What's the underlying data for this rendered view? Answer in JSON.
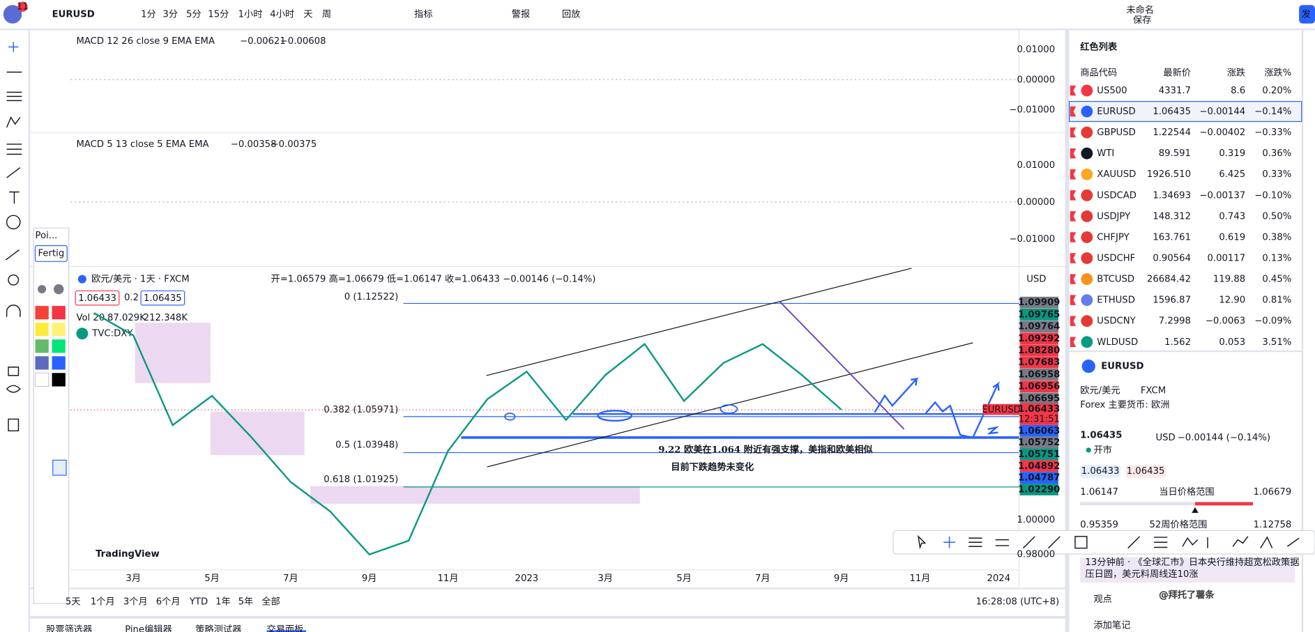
{
  "toolbar": {
    "symbol": "EURUSD",
    "intervals": [
      "1分",
      "3分",
      "5分",
      "15分",
      "1小时",
      "4小时",
      "天",
      "周"
    ],
    "indicators": "指标",
    "alert": "警报",
    "replay": "回放",
    "layout_name": "未命名",
    "save": "保存",
    "publish": "发",
    "badge": "11"
  },
  "macd": [
    {
      "label": "MACD 12 26 close 9 EMA EMA",
      "values": [
        "−0.00621",
        "−0.00608"
      ],
      "axis": [
        "0.01000",
        "0.00000",
        "−0.01000"
      ]
    },
    {
      "label": "MACD 5 13 close 5 EMA EMA",
      "values": [
        "−0.00358",
        "−0.00375"
      ],
      "axis": [
        "0.01000",
        "0.00000",
        "−0.01000"
      ]
    }
  ],
  "legend": {
    "title": "欧元/美元 · 1天 · FXCM",
    "ohlc": "开=1.06579 高=1.06679 低=1.06147 收=1.06433 −0.00146 (−0.14%)",
    "bid": "1.06433",
    "spread": "0.2",
    "ask": "1.06435",
    "volume": "Vol 20",
    "vol_values": [
      "87.029K",
      "212.348K"
    ],
    "compare": "TVC:DXY"
  },
  "currency": "USD",
  "fib_levels": [
    "0 (1.12522)",
    "0.382 (1.05971)",
    "0.5 (1.03948)",
    "0.618 (1.01925)"
  ],
  "price_labels": [
    {
      "text": "1.09909",
      "color": "#787b86"
    },
    {
      "text": "1.09765",
      "color": "#089981"
    },
    {
      "text": "1.09764",
      "color": "#787b86"
    },
    {
      "text": "1.09292",
      "color": "#f23645"
    },
    {
      "text": "1.08280",
      "color": "#f23645"
    },
    {
      "text": "1.07683",
      "color": "#f23645"
    },
    {
      "text": "1.06958",
      "color": "#787b86"
    },
    {
      "text": "1.06956",
      "color": "#f23645"
    },
    {
      "text": "1.06695",
      "color": "#787b86"
    }
  ],
  "last_price": {
    "symbol": "EURUSD",
    "price": "1.06433",
    "countdown": "12:31:51"
  },
  "price_labels_low": [
    {
      "text": "1.06063",
      "color": "#2962ff"
    },
    {
      "text": "1.05752",
      "color": "#787b86"
    },
    {
      "text": "1.05751",
      "color": "#089981"
    },
    {
      "text": "1.04892",
      "color": "#f23645"
    },
    {
      "text": "1.04787",
      "color": "#2962ff"
    },
    {
      "text": "1.02290",
      "color": "#089981"
    }
  ],
  "annotation": [
    "9.22 欧美在1.064 附近有强支撑，美指和欧美相似",
    "目前下跌趋势未变化"
  ],
  "chart_data": {
    "type": "line",
    "categories": [
      null,
      "3月",
      null,
      "5月",
      null,
      "7月",
      null,
      "9月",
      null,
      "11月",
      null,
      "2023",
      null,
      "3月",
      null,
      "5月",
      null,
      "7月",
      null,
      "9月",
      null,
      "11月",
      null,
      "2024"
    ],
    "values": [
      1.12,
      1.107,
      1.055,
      1.072,
      1.048,
      1.022,
      1.005,
      0.98,
      0.988,
      1.04,
      1.07,
      1.086,
      1.058,
      1.084,
      1.102,
      1.069,
      1.091,
      1.102,
      1.084,
      1.064,
      null,
      null,
      null,
      null
    ],
    "color": "#089981",
    "ylim": [
      0.971,
      1.145
    ],
    "yticks": [
      {
        "value": 1,
        "label": "1.00000"
      },
      {
        "value": 0.98,
        "label": "0.98000"
      }
    ]
  },
  "brand": "TradingView",
  "range_buttons": [
    "5天",
    "1个月",
    "3个月",
    "6个月",
    "YTD",
    "1年",
    "5年",
    "全部"
  ],
  "clock": "16:28:08 (UTC+8)",
  "bottom_tabs": [
    "股票筛选器",
    "Pine编辑器",
    "策略测试器",
    "交易面板"
  ],
  "drawing_palette": {
    "title": "Poi...",
    "button": "Fertig"
  },
  "watchlist": {
    "title": "红色列表",
    "columns": [
      "商品代码",
      "最新价",
      "涨跌",
      "涨跌%"
    ],
    "rows": [
      {
        "symbol": "US500",
        "price": "4331.7",
        "change": "8.6",
        "percent": "0.20%",
        "color": "#089981"
      },
      {
        "symbol": "EURUSD",
        "price": "1.06435",
        "change": "−0.00144",
        "percent": "−0.14%",
        "color": "#f23645"
      },
      {
        "symbol": "GBPUSD",
        "price": "1.22544",
        "change": "−0.00402",
        "percent": "−0.33%",
        "color": "#f23645"
      },
      {
        "symbol": "WTI",
        "price": "89.591",
        "change": "0.319",
        "percent": "0.36%",
        "color": "#089981"
      },
      {
        "symbol": "XAUUSD",
        "price": "1926.510",
        "change": "6.425",
        "percent": "0.33%",
        "color": "#089981"
      },
      {
        "symbol": "USDCAD",
        "price": "1.34693",
        "change": "−0.00137",
        "percent": "−0.10%",
        "color": "#f23645"
      },
      {
        "symbol": "USDJPY",
        "price": "148.312",
        "change": "0.743",
        "percent": "0.50%",
        "color": "#089981"
      },
      {
        "symbol": "CHFJPY",
        "price": "163.761",
        "change": "0.619",
        "percent": "0.38%",
        "color": "#089981"
      },
      {
        "symbol": "USDCHF",
        "price": "0.90564",
        "change": "0.00117",
        "percent": "0.13%",
        "color": "#089981"
      },
      {
        "symbol": "BTCUSD",
        "price": "26684.42",
        "change": "119.88",
        "percent": "0.45%",
        "color": "#089981"
      },
      {
        "symbol": "ETHUSD",
        "price": "1596.87",
        "change": "12.90",
        "percent": "0.81%",
        "color": "#089981"
      },
      {
        "symbol": "USDCNY",
        "price": "7.2998",
        "change": "−0.0063",
        "percent": "−0.09%",
        "color": "#f23645"
      },
      {
        "symbol": "WLDUSD",
        "price": "1.562",
        "change": "0.053",
        "percent": "3.51%",
        "color": "#089981"
      }
    ]
  },
  "details": {
    "symbol": "EURUSD",
    "name": "欧元/美元",
    "exchange": "FXCM",
    "category": "Forex 主要货币: 欧洲",
    "price": "1.06435",
    "currency": "USD",
    "change": "−0.00144 (−0.14%)",
    "status": "开市",
    "bid": "1.06433",
    "ask": "1.06435",
    "day_low": "1.06147",
    "day_label": "当日价格范围",
    "day_high": "1.06679",
    "week_low": "0.95359",
    "week_label": "52周价格范围",
    "week_high": "1.12758",
    "news": [
      "13分钟前 · 《全球汇市》日本央行维持超宽松政策据",
      "压日圆，美元料周线连10涨"
    ],
    "ideas": "观点",
    "notes": "添加笔记"
  },
  "watermark": "@拜托了薯条"
}
